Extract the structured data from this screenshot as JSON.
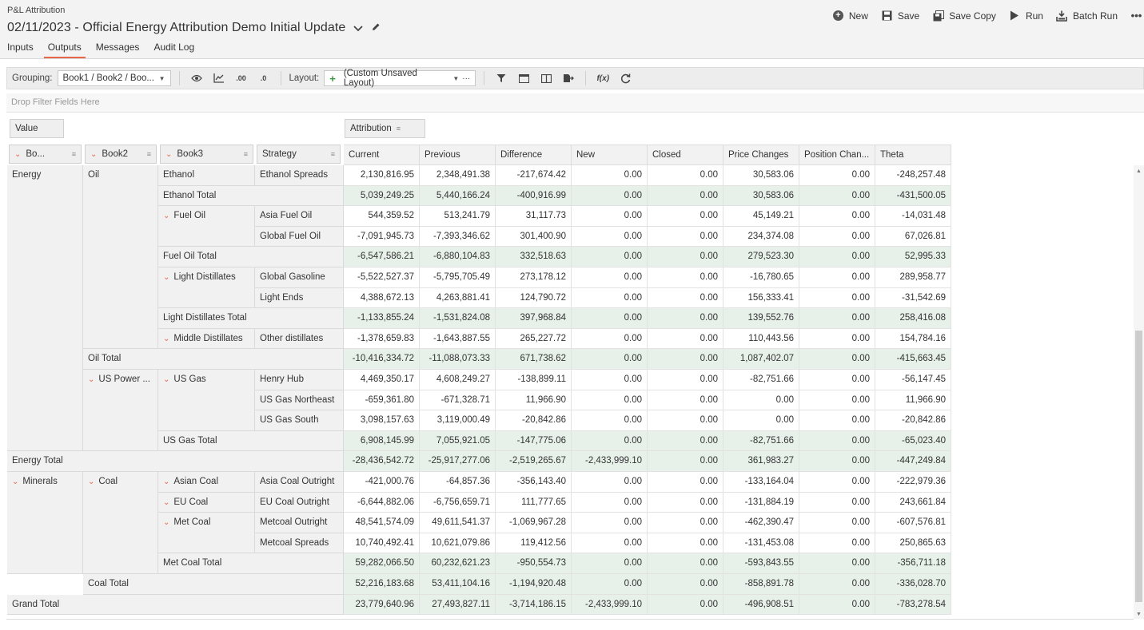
{
  "app": {
    "name": "P&L Attribution",
    "title": "02/11/2023 - Official Energy Attribution Demo Initial Update"
  },
  "tabs": [
    {
      "label": "Inputs",
      "active": false
    },
    {
      "label": "Outputs",
      "active": true
    },
    {
      "label": "Messages",
      "active": false
    },
    {
      "label": "Audit Log",
      "active": false
    }
  ],
  "actions": [
    {
      "label": "New",
      "icon": "plus-circle-icon"
    },
    {
      "label": "Save",
      "icon": "save-icon"
    },
    {
      "label": "Save Copy",
      "icon": "save-copy-icon"
    },
    {
      "label": "Run",
      "icon": "play-icon"
    },
    {
      "label": "Batch Run",
      "icon": "batch-run-icon"
    }
  ],
  "toolbar": {
    "grouping_label": "Grouping:",
    "grouping_value": "Book1 / Book2 / Boo...",
    "layout_label": "Layout:",
    "layout_value": "(Custom Unsaved Layout)",
    "more": "···",
    "fx": "f(x)"
  },
  "filter_zone": "Drop Filter Fields Here",
  "pivot": {
    "data_field": "Value",
    "column_field": "Attribution",
    "row_fields": [
      "Bo...",
      "Book2",
      "Book3",
      "Strategy"
    ],
    "columns": [
      "Current",
      "Previous",
      "Difference",
      "New",
      "Closed",
      "Price Changes",
      "Position Chan...",
      "Theta"
    ]
  },
  "row_headers": {
    "Energy": "Energy",
    "Oil": "Oil",
    "Ethanol": "Ethanol",
    "Ethanol Spreads": "Ethanol Spreads",
    "Ethanol Total": "Ethanol Total",
    "Fuel Oil": "Fuel Oil",
    "Asia Fuel Oil": "Asia Fuel Oil",
    "Global Fuel Oil": "Global Fuel Oil",
    "Fuel Oil Total": "Fuel Oil Total",
    "Light Distillates": "Light Distillates",
    "Global Gasoline": "Global Gasoline",
    "Light Ends": "Light Ends",
    "Light Distillates Total": "Light Distillates Total",
    "Middle Distillates": "Middle Distillates",
    "Other distillates": "Other distillates",
    "Oil Total": "Oil Total",
    "US Power ...": "US Power ...",
    "US Gas": "US Gas",
    "Henry Hub": "Henry Hub",
    "US Gas Northeast": "US Gas Northeast",
    "US Gas South": "US Gas South",
    "US Gas Total": "US Gas Total",
    "Energy Total": "Energy Total",
    "Minerals": "Minerals",
    "Coal": "Coal",
    "Asian Coal": "Asian Coal",
    "Asia Coal Outright": "Asia Coal Outright",
    "EU Coal": "EU Coal",
    "EU Coal Outright": "EU Coal Outright",
    "Met Coal": "Met Coal",
    "Metcoal Outright": "Metcoal Outright",
    "Metcoal Spreads": "Metcoal Spreads",
    "Met Coal Total": "Met Coal Total",
    "Coal Total": "Coal Total",
    "Grand Total": "Grand Total"
  },
  "rows": [
    {
      "values": [
        "2,130,816.95",
        "2,348,491.38",
        "-217,674.42",
        "0.00",
        "0.00",
        "30,583.06",
        "0.00",
        "-248,257.48"
      ],
      "total": false
    },
    {
      "values": [
        "5,039,249.25",
        "5,440,166.24",
        "-400,916.99",
        "0.00",
        "0.00",
        "30,583.06",
        "0.00",
        "-431,500.05"
      ],
      "total": true
    },
    {
      "values": [
        "544,359.52",
        "513,241.79",
        "31,117.73",
        "0.00",
        "0.00",
        "45,149.21",
        "0.00",
        "-14,031.48"
      ],
      "total": false
    },
    {
      "values": [
        "-7,091,945.73",
        "-7,393,346.62",
        "301,400.90",
        "0.00",
        "0.00",
        "234,374.08",
        "0.00",
        "67,026.81"
      ],
      "total": false
    },
    {
      "values": [
        "-6,547,586.21",
        "-6,880,104.83",
        "332,518.63",
        "0.00",
        "0.00",
        "279,523.30",
        "0.00",
        "52,995.33"
      ],
      "total": true
    },
    {
      "values": [
        "-5,522,527.37",
        "-5,795,705.49",
        "273,178.12",
        "0.00",
        "0.00",
        "-16,780.65",
        "0.00",
        "289,958.77"
      ],
      "total": false
    },
    {
      "values": [
        "4,388,672.13",
        "4,263,881.41",
        "124,790.72",
        "0.00",
        "0.00",
        "156,333.41",
        "0.00",
        "-31,542.69"
      ],
      "total": false
    },
    {
      "values": [
        "-1,133,855.24",
        "-1,531,824.08",
        "397,968.84",
        "0.00",
        "0.00",
        "139,552.76",
        "0.00",
        "258,416.08"
      ],
      "total": true
    },
    {
      "values": [
        "-1,378,659.83",
        "-1,643,887.55",
        "265,227.72",
        "0.00",
        "0.00",
        "110,443.56",
        "0.00",
        "154,784.16"
      ],
      "total": false
    },
    {
      "values": [
        "-10,416,334.72",
        "-11,088,073.33",
        "671,738.62",
        "0.00",
        "0.00",
        "1,087,402.07",
        "0.00",
        "-415,663.45"
      ],
      "total": true
    },
    {
      "values": [
        "4,469,350.17",
        "4,608,249.27",
        "-138,899.11",
        "0.00",
        "0.00",
        "-82,751.66",
        "0.00",
        "-56,147.45"
      ],
      "total": false
    },
    {
      "values": [
        "-659,361.80",
        "-671,328.71",
        "11,966.90",
        "0.00",
        "0.00",
        "0.00",
        "0.00",
        "11,966.90"
      ],
      "total": false
    },
    {
      "values": [
        "3,098,157.63",
        "3,119,000.49",
        "-20,842.86",
        "0.00",
        "0.00",
        "0.00",
        "0.00",
        "-20,842.86"
      ],
      "total": false
    },
    {
      "values": [
        "6,908,145.99",
        "7,055,921.05",
        "-147,775.06",
        "0.00",
        "0.00",
        "-82,751.66",
        "0.00",
        "-65,023.40"
      ],
      "total": true
    },
    {
      "values": [
        "-28,436,542.72",
        "-25,917,277.06",
        "-2,519,265.67",
        "-2,433,999.10",
        "0.00",
        "361,983.27",
        "0.00",
        "-447,249.84"
      ],
      "total": true
    },
    {
      "values": [
        "-421,000.76",
        "-64,857.36",
        "-356,143.40",
        "0.00",
        "0.00",
        "-133,164.04",
        "0.00",
        "-222,979.36"
      ],
      "total": false
    },
    {
      "values": [
        "-6,644,882.06",
        "-6,756,659.71",
        "111,777.65",
        "0.00",
        "0.00",
        "-131,884.19",
        "0.00",
        "243,661.84"
      ],
      "total": false
    },
    {
      "values": [
        "48,541,574.09",
        "49,611,541.37",
        "-1,069,967.28",
        "0.00",
        "0.00",
        "-462,390.47",
        "0.00",
        "-607,576.81"
      ],
      "total": false
    },
    {
      "values": [
        "10,740,492.41",
        "10,621,079.86",
        "119,412.56",
        "0.00",
        "0.00",
        "-131,453.08",
        "0.00",
        "250,865.63"
      ],
      "total": false
    },
    {
      "values": [
        "59,282,066.50",
        "60,232,621.23",
        "-950,554.73",
        "0.00",
        "0.00",
        "-593,843.55",
        "0.00",
        "-356,711.18"
      ],
      "total": true
    },
    {
      "values": [
        "52,216,183.68",
        "53,411,104.16",
        "-1,194,920.48",
        "0.00",
        "0.00",
        "-858,891.78",
        "0.00",
        "-336,028.70"
      ],
      "total": true
    },
    {
      "values": [
        "23,779,640.96",
        "27,493,827.11",
        "-3,714,186.15",
        "-2,433,999.10",
        "0.00",
        "-496,908.51",
        "0.00",
        "-783,278.54"
      ],
      "total": true
    }
  ]
}
